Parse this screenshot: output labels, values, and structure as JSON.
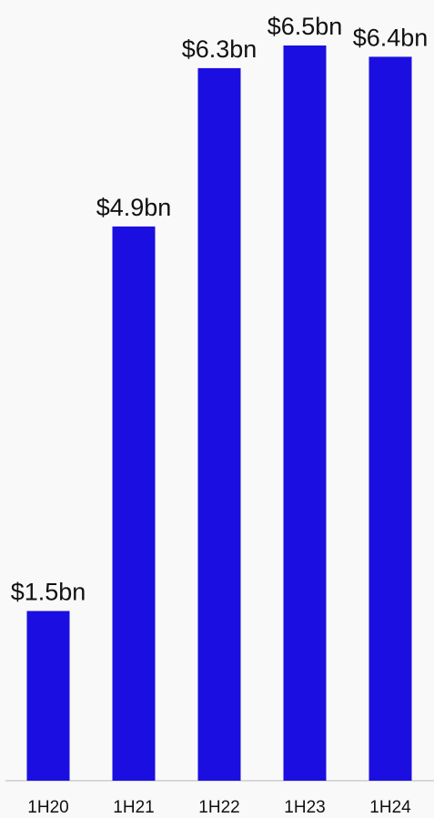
{
  "chart_data": {
    "type": "bar",
    "categories": [
      "1H20",
      "1H21",
      "1H22",
      "1H23",
      "1H24"
    ],
    "values": [
      1.5,
      4.9,
      6.3,
      6.5,
      6.4
    ],
    "data_labels": [
      "$1.5bn",
      "$4.9bn",
      "$6.3bn",
      "$6.5bn",
      "$6.4bn"
    ],
    "title": "",
    "xlabel": "",
    "ylabel": "",
    "ylim": [
      0,
      6.5
    ],
    "grid": false,
    "colors": {
      "bar": "#1a0fe0",
      "axis": "#cccccc",
      "text": "#111111",
      "background": "#f9f9f9"
    }
  }
}
